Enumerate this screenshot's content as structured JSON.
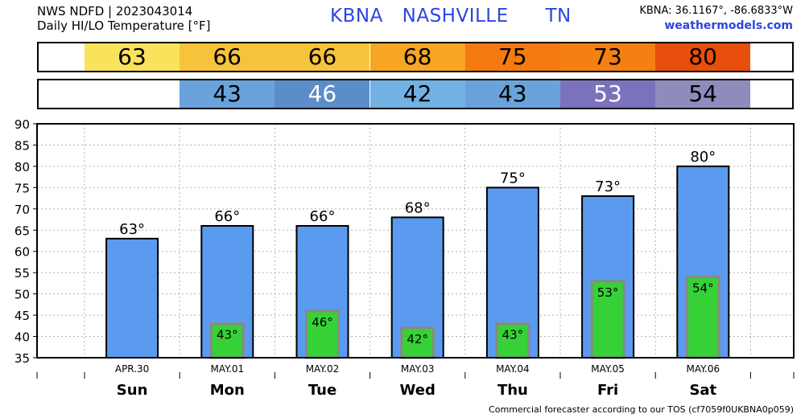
{
  "header": {
    "line1": "NWS NDFD | 2023043014",
    "line2": "Daily HI/LO Temperature [°F]",
    "station": "KBNA",
    "city": "NASHVILLE",
    "state": "TN",
    "coords": "KBNA: 36.1167°, -86.6833°W",
    "site": "weathermodels.com"
  },
  "footer": "Commercial forecaster according to our TOS (cf7059f0UKBNA0p059)",
  "colors": {
    "hi_bar": "#5b9bef",
    "lo_bar": "#36d136",
    "lo_bar_border": "#888888",
    "title": "#2b45e0"
  },
  "hi_strip": [
    {
      "value": "63",
      "color": "#f9e35c",
      "text_color": "#000000"
    },
    {
      "value": "66",
      "color": "#f7c33a",
      "text_color": "#000000"
    },
    {
      "value": "66",
      "color": "#f7c33a",
      "text_color": "#000000"
    },
    {
      "value": "68",
      "color": "#f6a623",
      "text_color": "#000000"
    },
    {
      "value": "75",
      "color": "#f57a10",
      "text_color": "#000000"
    },
    {
      "value": "73",
      "color": "#f58012",
      "text_color": "#000000"
    },
    {
      "value": "80",
      "color": "#e84e0c",
      "text_color": "#000000"
    }
  ],
  "lo_strip": [
    {
      "value": "",
      "color": "#ffffff",
      "text_color": "#000000"
    },
    {
      "value": "43",
      "color": "#6aa3db",
      "text_color": "#000000"
    },
    {
      "value": "46",
      "color": "#5b8dc9",
      "text_color": "#ffffff"
    },
    {
      "value": "42",
      "color": "#72b2e3",
      "text_color": "#000000"
    },
    {
      "value": "43",
      "color": "#6aa3db",
      "text_color": "#000000"
    },
    {
      "value": "53",
      "color": "#7b72bd",
      "text_color": "#ffffff"
    },
    {
      "value": "54",
      "color": "#8f8bbc",
      "text_color": "#000000"
    }
  ],
  "chart_data": {
    "type": "bar",
    "categories": [
      "APR.30",
      "MAY.01",
      "MAY.02",
      "MAY.03",
      "MAY.04",
      "MAY.05",
      "MAY.06"
    ],
    "days": [
      "Sun",
      "Mon",
      "Tue",
      "Wed",
      "Thu",
      "Fri",
      "Sat"
    ],
    "series": [
      {
        "values": [
          63,
          66,
          66,
          68,
          75,
          73,
          80
        ],
        "labels": [
          "63°",
          "66°",
          "66°",
          "68°",
          "75°",
          "73°",
          "80°"
        ]
      },
      {
        "values": [
          null,
          43,
          46,
          42,
          43,
          53,
          54
        ],
        "labels": [
          "",
          "43°",
          "46°",
          "42°",
          "43°",
          "53°",
          "54°"
        ]
      }
    ],
    "yticks": [
      "35",
      "40",
      "45",
      "50",
      "55",
      "60",
      "65",
      "70",
      "75",
      "80",
      "85",
      "90"
    ],
    "ylim": [
      35,
      90
    ],
    "grid": true
  }
}
